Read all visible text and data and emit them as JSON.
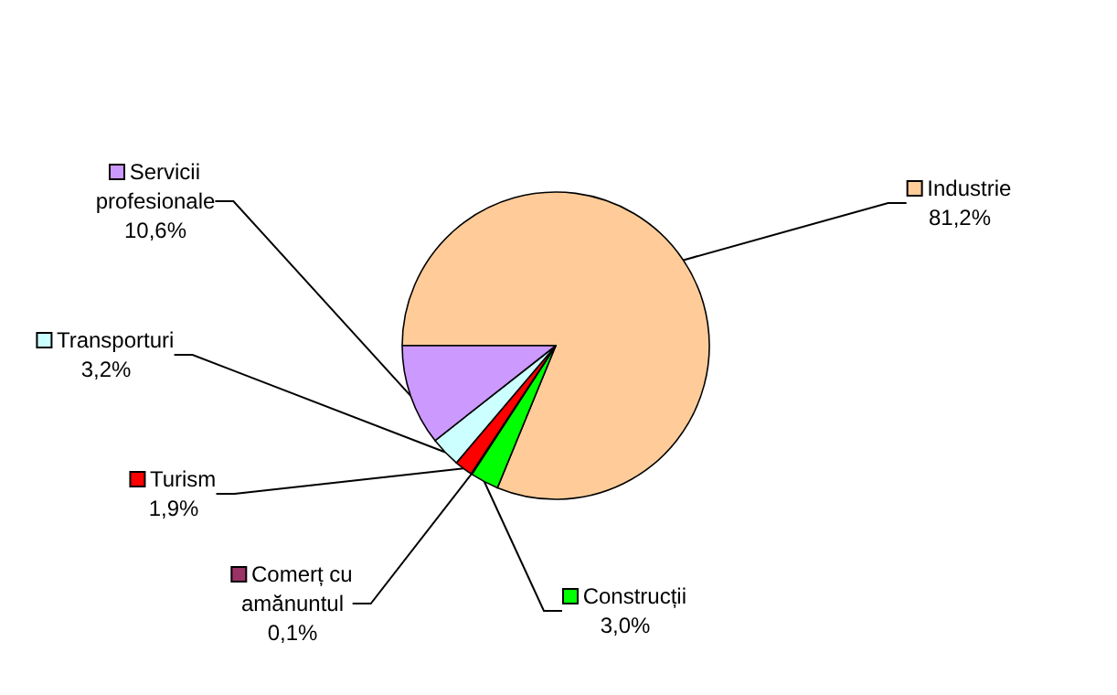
{
  "chart_data": {
    "type": "pie",
    "categories": [
      "Industrie",
      "Construcții",
      "Comerț cu amănuntul",
      "Turism",
      "Transporturi",
      "Servicii profesionale"
    ],
    "values": [
      81.2,
      3.0,
      0.1,
      1.9,
      3.2,
      10.6
    ],
    "colors": [
      "#ffcc99",
      "#00ff00",
      "#993366",
      "#ff0000",
      "#ccffff",
      "#cc99ff"
    ],
    "value_labels": [
      "81,2%",
      "3,0%",
      "0,1%",
      "1,9%",
      "3,2%",
      "10,6%"
    ],
    "legend": "left"
  }
}
